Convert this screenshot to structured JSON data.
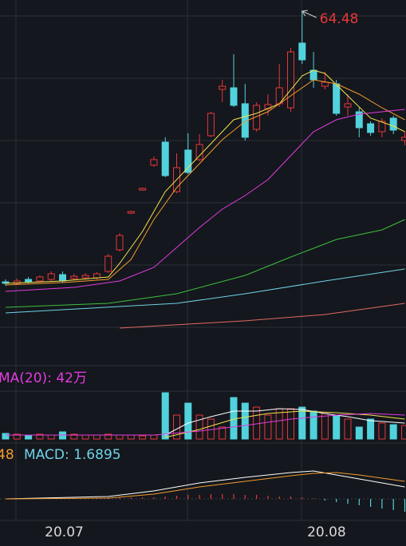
{
  "chart_data": [
    {
      "type": "candlestick",
      "categories": [
        null,
        null,
        null,
        null,
        null,
        "20.07",
        null,
        null,
        null,
        null,
        null,
        null,
        null,
        null,
        null,
        null,
        null,
        null,
        null,
        null,
        null,
        null,
        null,
        null,
        null,
        null,
        null,
        null,
        "20.08",
        null,
        null,
        null,
        null,
        null,
        null,
        null
      ],
      "open": [
        27.67,
        27.46,
        28.0,
        27.78,
        28.0,
        28.65,
        28.11,
        28.22,
        28.22,
        29.09,
        32.02,
        37.01,
        40.16,
        43.53,
        46.67,
        39.94,
        45.59,
        44.29,
        47.54,
        53.84,
        54.06,
        51.89,
        48.41,
        51.23,
        51.89,
        51.34,
        60.14,
        56.45,
        54.27,
        54.6,
        51.45,
        50.8,
        49.17,
        48.09,
        49.93,
        46.89
      ],
      "high": [
        28.0,
        28.11,
        28.33,
        28.54,
        29.09,
        29.09,
        28.76,
        28.87,
        28.98,
        31.47,
        34.3,
        37.34,
        40.49,
        44.72,
        47.33,
        45.15,
        47.87,
        47.76,
        50.8,
        55.14,
        58.62,
        54.6,
        52.1,
        53.19,
        57.31,
        59.49,
        64.48,
        58.94,
        56.23,
        55.14,
        53.19,
        51.34,
        49.5,
        49.93,
        50.26,
        48.09
      ],
      "low": [
        27.13,
        27.24,
        27.46,
        27.57,
        27.78,
        27.57,
        27.89,
        28.0,
        28.0,
        28.87,
        31.8,
        36.9,
        40.05,
        43.31,
        41.9,
        39.73,
        42.33,
        44.07,
        47.33,
        52.1,
        51.45,
        46.89,
        48.09,
        50.26,
        51.45,
        50.8,
        57.31,
        54.06,
        53.84,
        50.26,
        50.26,
        47.33,
        47.54,
        47.33,
        47.76,
        46.24
      ],
      "close": [
        27.46,
        27.78,
        27.67,
        28.33,
        28.76,
        27.78,
        28.43,
        28.54,
        28.76,
        31.15,
        33.97,
        37.23,
        40.38,
        44.29,
        42.11,
        43.2,
        42.55,
        46.35,
        50.58,
        54.27,
        51.67,
        47.33,
        51.67,
        51.78,
        54.06,
        58.94,
        57.86,
        55.14,
        54.82,
        50.58,
        51.89,
        48.63,
        47.98,
        49.5,
        48.3,
        47.33
      ],
      "ylim": [
        16.6,
        66
      ],
      "up_color": "#e8373a",
      "down_color": "#52d2dc",
      "ma_lines": [
        {
          "color": "#f2e14a",
          "x": [
            0,
            5,
            9,
            10,
            12,
            14,
            16,
            18,
            20,
            22,
            24,
            26,
            27,
            28,
            30,
            32,
            34,
            35
          ],
          "values": [
            27.46,
            27.78,
            28.33,
            30.17,
            34.51,
            39.94,
            43.2,
            46.46,
            49.71,
            50.58,
            51.89,
            55.69,
            56.45,
            56.01,
            52.97,
            49.93,
            48.85,
            48.09
          ]
        },
        {
          "color": "#f39a2d",
          "x": [
            0,
            5,
            9,
            11,
            13,
            15,
            17,
            19,
            21,
            23,
            25,
            27,
            29,
            31,
            33,
            35
          ],
          "values": [
            27.24,
            27.57,
            28.0,
            30.71,
            36.14,
            40.49,
            43.74,
            47.0,
            49.5,
            50.8,
            52.97,
            55.14,
            54.6,
            53.19,
            51.34,
            49.71
          ]
        },
        {
          "color": "#e23be0",
          "x": [
            0,
            6,
            10,
            13,
            15,
            17,
            19,
            21,
            23,
            25,
            27,
            29,
            31,
            33,
            35
          ],
          "values": [
            26.37,
            26.91,
            27.78,
            29.63,
            32.34,
            35.06,
            37.55,
            39.4,
            41.57,
            44.83,
            48.09,
            49.71,
            50.47,
            50.8,
            51.13
          ]
        },
        {
          "color": "#3fbf3f",
          "x": [
            0,
            9,
            15,
            21,
            25,
            29,
            33,
            35
          ],
          "values": [
            24.2,
            24.74,
            26.05,
            28.54,
            31.04,
            33.43,
            34.73,
            36.14
          ]
        },
        {
          "color": "#6fd3e6",
          "x": [
            0,
            15,
            21,
            28,
            35
          ],
          "values": [
            23.44,
            24.74,
            26.05,
            27.78,
            29.41
          ]
        },
        {
          "color": "#e06a62",
          "x": [
            10,
            21,
            28,
            35
          ],
          "values": [
            21.38,
            22.36,
            23.22,
            24.74
          ]
        }
      ]
    },
    {
      "type": "bar",
      "label": "MA(20): 42万",
      "label_color": "#e23be0",
      "values": [
        10.5,
        9,
        7.5,
        9,
        7.5,
        13.5,
        9,
        7.5,
        7.5,
        9,
        7.5,
        7.5,
        6,
        7.5,
        87,
        45,
        67.5,
        45,
        37.5,
        22.5,
        78,
        67.5,
        60,
        45,
        57,
        57,
        60,
        52.5,
        48,
        45,
        37.5,
        22.5,
        37.5,
        30,
        27,
        25.5
      ],
      "ylim": [
        0,
        90
      ],
      "lines": [
        {
          "color": "#ffffff",
          "x": [
            14,
            16,
            18,
            20,
            22,
            24,
            26,
            28,
            30,
            32,
            35
          ],
          "values": [
            7.5,
            30,
            42,
            52.5,
            52.5,
            57,
            55.5,
            48,
            42,
            34.5,
            30
          ]
        },
        {
          "color": "#f2e14a",
          "x": [
            14,
            17,
            20,
            23,
            26,
            29,
            32,
            35
          ],
          "values": [
            3,
            18,
            37.5,
            48,
            52.5,
            49.5,
            45,
            37.5
          ]
        },
        {
          "color": "#e23be0",
          "x": [
            0,
            13,
            17,
            21,
            25,
            29,
            32,
            35
          ],
          "values": [
            7.5,
            7.5,
            15,
            25.5,
            37.5,
            45,
            48,
            45
          ]
        }
      ]
    },
    {
      "type": "bar",
      "label_left": "48",
      "label_left_color": "#f39a2d",
      "label": "MACD: 1.6895",
      "label_color": "#6fd3e6",
      "values": [
        0.05,
        0.05,
        0.05,
        0.05,
        0.05,
        0.05,
        0.05,
        0.05,
        0.05,
        0.2,
        0.2,
        0.2,
        0.2,
        0.2,
        0.3,
        0.4,
        0.5,
        0.5,
        0.6,
        0.6,
        0.6,
        0.5,
        0.5,
        0.4,
        0.3,
        0.3,
        0.2,
        0.1,
        -0.2,
        -0.4,
        -0.6,
        -0.8,
        -1.0,
        -1.2,
        -1.4,
        -1.6
      ],
      "ylim": [
        -2.5,
        6.5
      ],
      "lines": [
        {
          "color": "#ffffff",
          "x": [
            0,
            9,
            13,
            17,
            21,
            25,
            27,
            29,
            31,
            33,
            35
          ],
          "values": [
            0,
            0.3,
            1.0,
            2.0,
            2.7,
            3.3,
            3.5,
            3.0,
            2.5,
            2.0,
            1.5
          ]
        },
        {
          "color": "#f39a2d",
          "x": [
            0,
            9,
            13,
            17,
            21,
            25,
            27,
            29,
            31,
            33,
            35
          ],
          "values": [
            0,
            0.1,
            0.6,
            1.5,
            2.2,
            2.9,
            3.2,
            3.3,
            3.0,
            2.6,
            2.2
          ]
        }
      ]
    }
  ]
}
